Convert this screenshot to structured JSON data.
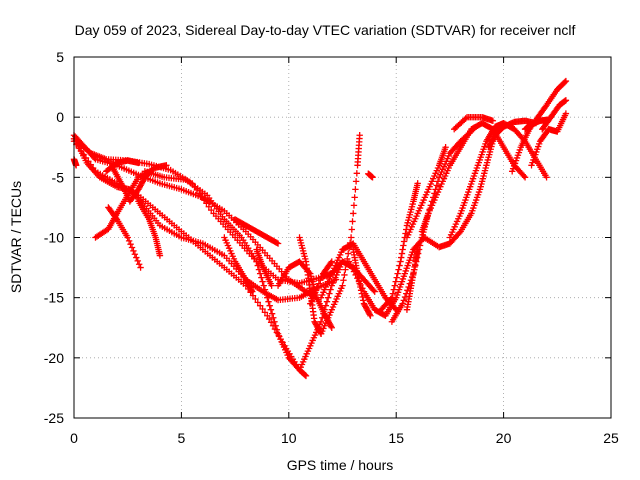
{
  "chart_data": {
    "type": "scatter",
    "title": "Day 059 of 2023, Sidereal Day-to-day VTEC variation (SDTVAR) for receiver nclf",
    "xlabel": "GPS time / hours",
    "ylabel": "SDTVAR / TECUs",
    "xlim": [
      0,
      25
    ],
    "ylim": [
      -25,
      5
    ],
    "xticks": [
      "0",
      "5",
      "10",
      "15",
      "20",
      "25"
    ],
    "yticks": [
      "5",
      "0",
      "-5",
      "-10",
      "-15",
      "-20",
      "-25"
    ],
    "xtick_values": [
      0,
      5,
      10,
      15,
      20,
      25
    ],
    "ytick_values": [
      5,
      0,
      -5,
      -10,
      -15,
      -20,
      -25
    ],
    "grid": true,
    "marker": "+",
    "series_color": "#ff0000",
    "series": [
      {
        "points": [
          [
            0.0,
            -1.5
          ],
          [
            0.5,
            -2.5
          ],
          [
            1.0,
            -3.5
          ],
          [
            2.0,
            -4.0
          ],
          [
            3.0,
            -4.8
          ],
          [
            4.0,
            -5.5
          ],
          [
            5.0,
            -6.0
          ],
          [
            6.0,
            -6.7
          ],
          [
            7.0,
            -7.8
          ],
          [
            8.0,
            -9.5
          ],
          [
            9.0,
            -11.5
          ],
          [
            10.0,
            -13.5
          ],
          [
            10.8,
            -14.5
          ],
          [
            11.3,
            -15.0
          ]
        ]
      },
      {
        "points": [
          [
            0.0,
            -1.8
          ],
          [
            0.8,
            -3.0
          ],
          [
            1.5,
            -3.5
          ],
          [
            2.5,
            -3.6
          ],
          [
            3.5,
            -3.9
          ],
          [
            4.5,
            -4.4
          ],
          [
            5.5,
            -5.5
          ],
          [
            6.5,
            -8.0
          ],
          [
            7.5,
            -10.0
          ],
          [
            8.5,
            -12.0
          ],
          [
            9.5,
            -13.5
          ],
          [
            10.5,
            -13.8
          ],
          [
            11.5,
            -13.3
          ],
          [
            12.0,
            -13.0
          ]
        ]
      },
      {
        "points": [
          [
            0.0,
            -2.0
          ],
          [
            1.0,
            -4.5
          ],
          [
            2.0,
            -5.5
          ],
          [
            3.0,
            -6.5
          ],
          [
            4.0,
            -8.0
          ],
          [
            5.0,
            -9.5
          ],
          [
            6.0,
            -11.0
          ],
          [
            7.0,
            -12.5
          ],
          [
            8.0,
            -14.0
          ],
          [
            9.0,
            -16.5
          ],
          [
            9.8,
            -19.0
          ],
          [
            10.5,
            -21.0
          ],
          [
            10.8,
            -21.5
          ]
        ]
      },
      {
        "points": [
          [
            0.1,
            -2.0
          ],
          [
            0.6,
            -3.8
          ],
          [
            1.2,
            -5.0
          ],
          [
            2.0,
            -5.8
          ],
          [
            2.6,
            -6.0
          ],
          [
            3.2,
            -7.2
          ],
          [
            4.0,
            -9.0
          ],
          [
            5.0,
            -10.0
          ],
          [
            6.0,
            -10.5
          ],
          [
            7.0,
            -11.5
          ],
          [
            8.0,
            -13.5
          ],
          [
            8.8,
            -14.5
          ],
          [
            9.5,
            -15.2
          ],
          [
            10.5,
            -15.0
          ],
          [
            11.3,
            -14.2
          ],
          [
            12.2,
            -13.5
          ]
        ]
      },
      {
        "points": [
          [
            3.3,
            -4.5
          ],
          [
            4.2,
            -5.0
          ],
          [
            5.2,
            -5.2
          ],
          [
            6.2,
            -6.5
          ],
          [
            7.0,
            -8.5
          ],
          [
            7.8,
            -10.0
          ],
          [
            8.5,
            -12.0
          ],
          [
            9.0,
            -15.0
          ],
          [
            9.5,
            -18.0
          ],
          [
            10.0,
            -20.0
          ],
          [
            10.5,
            -21.0
          ],
          [
            11.0,
            -19.0
          ],
          [
            11.5,
            -17.0
          ],
          [
            12.0,
            -14.0
          ],
          [
            12.5,
            -12.0
          ]
        ]
      },
      {
        "points": [
          [
            1.0,
            -10.0
          ],
          [
            1.6,
            -9.3
          ],
          [
            2.0,
            -8.0
          ],
          [
            2.5,
            -6.5
          ],
          [
            3.0,
            -5.0
          ],
          [
            3.8,
            -4.2
          ],
          [
            4.3,
            -4.0
          ]
        ]
      },
      {
        "points": [
          [
            1.6,
            -7.5
          ],
          [
            2.0,
            -8.5
          ],
          [
            2.5,
            -10.0
          ],
          [
            3.1,
            -12.5
          ]
        ]
      },
      {
        "points": [
          [
            3.0,
            -7.0
          ],
          [
            3.5,
            -8.5
          ],
          [
            3.8,
            -10.0
          ],
          [
            4.0,
            -11.5
          ]
        ]
      },
      {
        "points": [
          [
            1.5,
            -4.5
          ],
          [
            2.0,
            -3.8
          ],
          [
            2.5,
            -3.6
          ],
          [
            3.0,
            -3.8
          ]
        ]
      },
      {
        "points": [
          [
            1.8,
            -4.2
          ],
          [
            2.2,
            -5.5
          ],
          [
            2.6,
            -7.0
          ],
          [
            3.0,
            -6.0
          ],
          [
            3.3,
            -5.0
          ],
          [
            3.7,
            -4.3
          ]
        ]
      },
      {
        "points": [
          [
            7.5,
            -8.5
          ],
          [
            8.0,
            -9.0
          ],
          [
            8.5,
            -9.5
          ],
          [
            9.0,
            -10.0
          ],
          [
            9.5,
            -10.5
          ]
        ]
      },
      {
        "points": [
          [
            7.0,
            -10.0
          ],
          [
            7.5,
            -12.0
          ],
          [
            8.0,
            -13.5
          ],
          [
            8.3,
            -14.5
          ]
        ]
      },
      {
        "points": [
          [
            8.5,
            -11.0
          ],
          [
            8.8,
            -12.5
          ],
          [
            9.2,
            -14.0
          ]
        ]
      },
      {
        "points": [
          [
            9.5,
            -14.0
          ],
          [
            10.0,
            -12.5
          ],
          [
            10.5,
            -12.0
          ],
          [
            11.0,
            -13.0
          ],
          [
            11.3,
            -15.0
          ],
          [
            11.7,
            -16.5
          ],
          [
            12.0,
            -17.5
          ]
        ]
      },
      {
        "points": [
          [
            10.5,
            -10.0
          ],
          [
            10.8,
            -12.0
          ],
          [
            11.0,
            -14.5
          ],
          [
            11.2,
            -17.0
          ],
          [
            11.5,
            -18.0
          ]
        ]
      },
      {
        "points": [
          [
            11.5,
            -15.0
          ],
          [
            12.0,
            -13.0
          ],
          [
            12.5,
            -11.0
          ],
          [
            13.0,
            -10.5
          ],
          [
            13.5,
            -12.0
          ],
          [
            14.0,
            -13.5
          ],
          [
            14.5,
            -15.0
          ],
          [
            15.0,
            -16.0
          ]
        ]
      },
      {
        "points": [
          [
            11.5,
            -18.0
          ],
          [
            12.0,
            -16.0
          ],
          [
            12.5,
            -14.0
          ],
          [
            12.9,
            -10.0
          ],
          [
            13.2,
            -4.0
          ],
          [
            13.3,
            -1.5
          ]
        ]
      },
      {
        "points": [
          [
            12.8,
            -12.0
          ],
          [
            13.5,
            -14.5
          ],
          [
            14.0,
            -16.0
          ],
          [
            14.5,
            -16.5
          ],
          [
            15.0,
            -15.0
          ],
          [
            15.4,
            -13.0
          ],
          [
            15.8,
            -11.0
          ],
          [
            16.3,
            -10.0
          ]
        ]
      },
      {
        "points": [
          [
            13.0,
            -11.0
          ],
          [
            13.2,
            -13.0
          ],
          [
            13.5,
            -15.5
          ],
          [
            13.8,
            -16.5
          ]
        ]
      },
      {
        "points": [
          [
            12.0,
            -13.0
          ],
          [
            12.5,
            -12.0
          ],
          [
            13.0,
            -12.5
          ],
          [
            13.5,
            -13.5
          ],
          [
            14.0,
            -14.5
          ]
        ]
      },
      {
        "points": [
          [
            11.0,
            -15.5
          ],
          [
            11.6,
            -13.0
          ],
          [
            12.0,
            -12.0
          ]
        ]
      },
      {
        "points": [
          [
            14.3,
            -16.0
          ],
          [
            14.8,
            -15.0
          ],
          [
            15.2,
            -12.0
          ],
          [
            15.5,
            -9.0
          ],
          [
            15.8,
            -7.0
          ],
          [
            16.0,
            -5.5
          ]
        ]
      },
      {
        "points": [
          [
            14.8,
            -17.0
          ],
          [
            15.3,
            -15.5
          ],
          [
            15.8,
            -13.0
          ],
          [
            16.2,
            -10.0
          ],
          [
            16.5,
            -8.0
          ],
          [
            17.0,
            -5.0
          ],
          [
            17.5,
            -3.0
          ],
          [
            18.0,
            -2.0
          ],
          [
            18.6,
            -1.0
          ]
        ]
      },
      {
        "points": [
          [
            15.5,
            -10.0
          ],
          [
            16.0,
            -8.0
          ],
          [
            16.5,
            -6.0
          ],
          [
            17.0,
            -4.0
          ],
          [
            17.3,
            -2.5
          ]
        ]
      },
      {
        "points": [
          [
            15.5,
            -16.0
          ],
          [
            15.7,
            -14.0
          ],
          [
            15.9,
            -12.0
          ],
          [
            16.0,
            -11.0
          ]
        ]
      },
      {
        "points": [
          [
            16.2,
            -9.5
          ],
          [
            16.5,
            -8.0
          ],
          [
            17.0,
            -6.0
          ],
          [
            17.5,
            -4.0
          ],
          [
            18.0,
            -2.5
          ],
          [
            18.5,
            -1.0
          ],
          [
            19.0,
            -0.5
          ],
          [
            19.5,
            -1.0
          ],
          [
            20.0,
            -2.5
          ],
          [
            20.5,
            -4.0
          ],
          [
            21.0,
            -5.0
          ]
        ]
      },
      {
        "points": [
          [
            16.3,
            -10.0
          ],
          [
            17.0,
            -10.8
          ],
          [
            17.5,
            -10.5
          ],
          [
            18.0,
            -9.5
          ],
          [
            18.5,
            -8.0
          ],
          [
            18.9,
            -6.0
          ],
          [
            19.2,
            -4.0
          ],
          [
            19.5,
            -2.0
          ],
          [
            19.8,
            -0.8
          ]
        ]
      },
      {
        "points": [
          [
            17.5,
            -10.0
          ],
          [
            18.0,
            -8.0
          ],
          [
            18.4,
            -6.0
          ],
          [
            18.8,
            -4.0
          ],
          [
            19.2,
            -2.0
          ],
          [
            19.6,
            -0.8
          ],
          [
            20.0,
            -0.5
          ],
          [
            20.5,
            -1.0
          ],
          [
            21.0,
            -2.0
          ],
          [
            21.5,
            -3.5
          ],
          [
            22.0,
            -5.0
          ]
        ]
      },
      {
        "points": [
          [
            17.7,
            -1.0
          ],
          [
            18.3,
            0.0
          ],
          [
            19.0,
            0.0
          ],
          [
            19.5,
            -0.3
          ]
        ]
      },
      {
        "points": [
          [
            19.3,
            -2.5
          ],
          [
            19.6,
            -1.5
          ],
          [
            20.0,
            -0.8
          ],
          [
            20.5,
            -0.4
          ],
          [
            21.0,
            -0.3
          ],
          [
            21.5,
            -0.5
          ]
        ]
      },
      {
        "points": [
          [
            20.4,
            -4.5
          ],
          [
            20.8,
            -2.5
          ],
          [
            21.2,
            -1.0
          ],
          [
            21.6,
            0.0
          ],
          [
            22.0,
            1.0
          ],
          [
            22.5,
            2.3
          ],
          [
            22.9,
            3.0
          ]
        ]
      },
      {
        "points": [
          [
            21.8,
            -1.0
          ],
          [
            22.2,
            0.0
          ],
          [
            22.6,
            1.0
          ],
          [
            22.9,
            1.4
          ]
        ]
      },
      {
        "points": [
          [
            21.3,
            -4.0
          ],
          [
            21.7,
            -2.0
          ],
          [
            22.1,
            -1.0
          ],
          [
            22.5,
            -1.2
          ],
          [
            22.9,
            0.3
          ]
        ]
      },
      {
        "points": [
          [
            21.0,
            -1.0
          ],
          [
            21.3,
            -0.6
          ],
          [
            21.7,
            -0.3
          ],
          [
            22.1,
            -0.2
          ]
        ]
      },
      {
        "points": [
          [
            0.0,
            -3.5
          ],
          [
            0.1,
            -4.0
          ]
        ]
      },
      {
        "points": [
          [
            13.7,
            -4.7
          ],
          [
            13.9,
            -5.0
          ]
        ]
      }
    ]
  }
}
